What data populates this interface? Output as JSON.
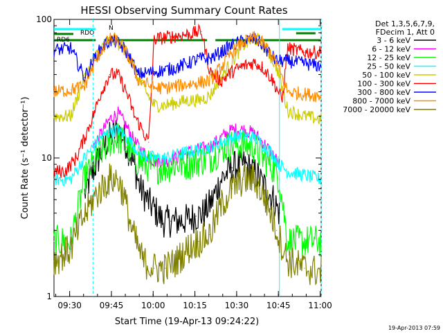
{
  "chart_data": {
    "type": "line",
    "title": "HESSI Observing Summary Count Rates",
    "ylabel": "Count Rate (s⁻¹ detector⁻¹)",
    "xlabel": "Start Time (19-Apr-13 09:24:22)",
    "y_scale": "log",
    "ylim": [
      1,
      100
    ],
    "y_tick_labels": [
      "1",
      "10",
      "100"
    ],
    "x_range_minutes": [
      0,
      96
    ],
    "x_tick_labels": [
      "09:30",
      "09:45",
      "10:00",
      "10:15",
      "10:30",
      "10:45",
      "11:00"
    ],
    "grid": false,
    "legend_position": "right",
    "legend_header": [
      "Det 1,3,5,6,7,9,",
      "FDecim 1, Att 0"
    ],
    "footer_timestamp": "19-Apr-2013 07:59",
    "annotations": {
      "saa_label": "RDO",
      "night_label": "RD6",
      "flag_letter": "N"
    },
    "series": [
      {
        "name": "3 - 6 keV",
        "color": "#000000",
        "points": [
          [
            11,
            5.5
          ],
          [
            14,
            8
          ],
          [
            17,
            11
          ],
          [
            20,
            14
          ],
          [
            23,
            16
          ],
          [
            25,
            14
          ],
          [
            28,
            10
          ],
          [
            31,
            6
          ],
          [
            34,
            4.8
          ],
          [
            37,
            4
          ],
          [
            39,
            3.5
          ],
          [
            42,
            3.5
          ],
          [
            45,
            3.5
          ],
          [
            48,
            3.6
          ],
          [
            51,
            3.8
          ],
          [
            54,
            4
          ],
          [
            57,
            5
          ],
          [
            60,
            7
          ],
          [
            64,
            8.5
          ],
          [
            68,
            9
          ],
          [
            72,
            8
          ],
          [
            75,
            6.5
          ],
          [
            79,
            5
          ],
          [
            81,
            4
          ]
        ]
      },
      {
        "name": "6 - 12 keV",
        "color": "#ff00ff",
        "points": [
          [
            14,
            12
          ],
          [
            17,
            15
          ],
          [
            20,
            19
          ],
          [
            23,
            21
          ],
          [
            26,
            17
          ],
          [
            29,
            13
          ],
          [
            32,
            11
          ],
          [
            36,
            9.5
          ],
          [
            40,
            9.5
          ],
          [
            44,
            10
          ],
          [
            48,
            11
          ],
          [
            52,
            11.5
          ],
          [
            56,
            12
          ],
          [
            60,
            14
          ],
          [
            64,
            16
          ],
          [
            68,
            16
          ],
          [
            72,
            15
          ],
          [
            75,
            13
          ],
          [
            78,
            11
          ],
          [
            81,
            9
          ]
        ]
      },
      {
        "name": "12 - 25 keV",
        "color": "#00ff00",
        "points": [
          [
            0,
            2.5
          ],
          [
            6,
            2.5
          ],
          [
            11,
            7
          ],
          [
            14,
            9
          ],
          [
            17,
            11
          ],
          [
            20,
            13
          ],
          [
            23,
            14
          ],
          [
            26,
            12
          ],
          [
            29,
            10
          ],
          [
            32,
            9
          ],
          [
            36,
            8.5
          ],
          [
            40,
            8.5
          ],
          [
            44,
            9
          ],
          [
            48,
            9
          ],
          [
            52,
            9.5
          ],
          [
            56,
            10
          ],
          [
            60,
            11.5
          ],
          [
            64,
            12.5
          ],
          [
            68,
            12.5
          ],
          [
            72,
            12
          ],
          [
            75,
            10
          ],
          [
            78,
            9
          ],
          [
            81,
            7
          ],
          [
            84,
            2.5
          ],
          [
            96,
            2.5
          ]
        ]
      },
      {
        "name": "25 - 50 keV",
        "color": "#00ffff",
        "points": [
          [
            0,
            7
          ],
          [
            6,
            7
          ],
          [
            11,
            10
          ],
          [
            14,
            12
          ],
          [
            17,
            14
          ],
          [
            20,
            15.5
          ],
          [
            23,
            16
          ],
          [
            26,
            14
          ],
          [
            29,
            12
          ],
          [
            32,
            10.5
          ],
          [
            36,
            10
          ],
          [
            40,
            10
          ],
          [
            44,
            10.5
          ],
          [
            48,
            11
          ],
          [
            52,
            11.5
          ],
          [
            56,
            12
          ],
          [
            60,
            13
          ],
          [
            64,
            14
          ],
          [
            68,
            14.5
          ],
          [
            72,
            14
          ],
          [
            75,
            12.5
          ],
          [
            78,
            11
          ],
          [
            81,
            9
          ],
          [
            84,
            8
          ],
          [
            90,
            7.5
          ],
          [
            96,
            7
          ]
        ]
      },
      {
        "name": "50 - 100 keV",
        "color": "#cccc00",
        "points": [
          [
            0,
            20
          ],
          [
            6,
            20
          ],
          [
            11,
            38
          ],
          [
            14,
            50
          ],
          [
            17,
            62
          ],
          [
            20,
            70
          ],
          [
            22,
            70
          ],
          [
            25,
            62
          ],
          [
            28,
            50
          ],
          [
            30,
            38
          ],
          [
            36,
            24
          ],
          [
            40,
            24
          ],
          [
            44,
            25
          ],
          [
            48,
            26
          ],
          [
            52,
            26
          ],
          [
            56,
            28
          ],
          [
            60,
            38
          ],
          [
            64,
            50
          ],
          [
            68,
            65
          ],
          [
            72,
            72
          ],
          [
            74,
            70
          ],
          [
            77,
            58
          ],
          [
            80,
            45
          ],
          [
            81,
            38
          ],
          [
            84,
            22
          ],
          [
            90,
            20
          ],
          [
            96,
            19
          ]
        ]
      },
      {
        "name": "100 - 300 keV",
        "color": "#ff0000",
        "points": [
          [
            0,
            8
          ],
          [
            4,
            8
          ],
          [
            8,
            10
          ],
          [
            11,
            14
          ],
          [
            14,
            20
          ],
          [
            17,
            30
          ],
          [
            20,
            40
          ],
          [
            23,
            40
          ],
          [
            26,
            30
          ],
          [
            29,
            20
          ],
          [
            31,
            17
          ],
          [
            34,
            13
          ],
          [
            36,
            72
          ],
          [
            42,
            75
          ],
          [
            48,
            78
          ],
          [
            53,
            82
          ],
          [
            56,
            42
          ],
          [
            60,
            36
          ],
          [
            64,
            42
          ],
          [
            68,
            46
          ],
          [
            72,
            49
          ],
          [
            75,
            45
          ],
          [
            78,
            38
          ],
          [
            80,
            32
          ],
          [
            82,
            26
          ],
          [
            84,
            62
          ],
          [
            90,
            58
          ],
          [
            96,
            58
          ]
        ]
      },
      {
        "name": "300 - 800 keV",
        "color": "#0000ff",
        "points": [
          [
            0,
            60
          ],
          [
            6,
            62
          ],
          [
            11,
            38
          ],
          [
            14,
            50
          ],
          [
            17,
            62
          ],
          [
            20,
            70
          ],
          [
            22,
            70
          ],
          [
            25,
            62
          ],
          [
            28,
            50
          ],
          [
            30,
            40
          ],
          [
            36,
            42
          ],
          [
            40,
            43
          ],
          [
            44,
            45
          ],
          [
            48,
            48
          ],
          [
            52,
            52
          ],
          [
            56,
            52
          ],
          [
            60,
            58
          ],
          [
            64,
            65
          ],
          [
            68,
            70
          ],
          [
            72,
            72
          ],
          [
            74,
            68
          ],
          [
            77,
            58
          ],
          [
            80,
            50
          ],
          [
            84,
            50
          ],
          [
            90,
            48
          ],
          [
            96,
            46
          ]
        ]
      },
      {
        "name": "800 - 7000 keV",
        "color": "#ff8c00",
        "points": [
          [
            0,
            30
          ],
          [
            6,
            31
          ],
          [
            11,
            33
          ],
          [
            14,
            45
          ],
          [
            17,
            60
          ],
          [
            20,
            72
          ],
          [
            22,
            72
          ],
          [
            25,
            62
          ],
          [
            28,
            48
          ],
          [
            30,
            37
          ],
          [
            36,
            32
          ],
          [
            40,
            32
          ],
          [
            44,
            33
          ],
          [
            48,
            34
          ],
          [
            52,
            35
          ],
          [
            56,
            36
          ],
          [
            60,
            45
          ],
          [
            64,
            58
          ],
          [
            68,
            68
          ],
          [
            72,
            74
          ],
          [
            74,
            70
          ],
          [
            77,
            60
          ],
          [
            80,
            48
          ],
          [
            84,
            30
          ],
          [
            90,
            29
          ],
          [
            96,
            28
          ]
        ]
      },
      {
        "name": "7000 - 20000 keV",
        "color": "#808000",
        "points": [
          [
            0,
            1.8
          ],
          [
            6,
            2.2
          ],
          [
            10,
            3.5
          ],
          [
            14,
            5
          ],
          [
            17,
            6
          ],
          [
            20,
            7
          ],
          [
            23,
            7
          ],
          [
            25,
            5.5
          ],
          [
            28,
            3
          ],
          [
            32,
            1.8
          ],
          [
            36,
            1.6
          ],
          [
            40,
            1.6
          ],
          [
            44,
            1.8
          ],
          [
            48,
            2.2
          ],
          [
            52,
            2.5
          ],
          [
            56,
            2.8
          ],
          [
            60,
            4.5
          ],
          [
            64,
            6
          ],
          [
            68,
            7
          ],
          [
            72,
            7
          ],
          [
            74,
            6
          ],
          [
            77,
            4.5
          ],
          [
            80,
            3
          ],
          [
            84,
            1.8
          ],
          [
            90,
            1.6
          ],
          [
            96,
            1.5
          ]
        ]
      }
    ]
  }
}
